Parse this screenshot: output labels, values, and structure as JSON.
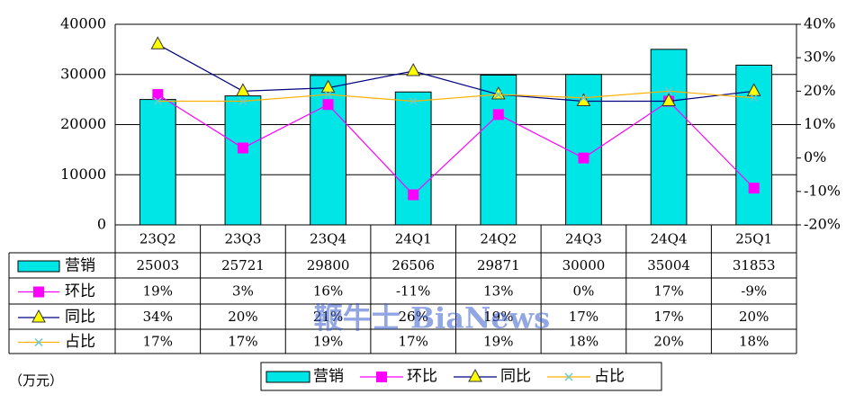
{
  "chart_data": {
    "type": "bar",
    "unit_label": "（万元）",
    "watermark": "鞭牛士 BiaNews",
    "categories": [
      "23Q2",
      "23Q3",
      "23Q4",
      "24Q1",
      "24Q2",
      "24Q3",
      "24Q4",
      "25Q1"
    ],
    "ylim": [
      0,
      40000
    ],
    "yticks": [
      0,
      10000,
      20000,
      30000,
      40000
    ],
    "y2lim": [
      -20,
      40
    ],
    "y2ticks": [
      {
        "value": -20,
        "label": "-20%"
      },
      {
        "value": -10,
        "label": "-10%"
      },
      {
        "value": 0,
        "label": "0%"
      },
      {
        "value": 10,
        "label": "10%"
      },
      {
        "value": 20,
        "label": "20%"
      },
      {
        "value": 30,
        "label": "30%"
      },
      {
        "value": 40,
        "label": "40%"
      }
    ],
    "grid": true,
    "series": [
      {
        "name": "营销",
        "type": "bar",
        "color": "#00e6e6",
        "values": [
          25003,
          25721,
          29800,
          26506,
          29871,
          30000,
          35004,
          31853
        ]
      },
      {
        "name": "环比",
        "type": "line",
        "axis": "y2",
        "color": "#ff00ff",
        "marker": "square",
        "marker_color": "#ff00ff",
        "values": [
          19,
          3,
          16,
          -11,
          13,
          0,
          17,
          -9
        ],
        "value_labels": [
          "19%",
          "3%",
          "16%",
          "-11%",
          "13%",
          "0%",
          "17%",
          "-9%"
        ]
      },
      {
        "name": "同比",
        "type": "line",
        "axis": "y2",
        "color": "#000080",
        "marker": "triangle",
        "marker_color": "#ffff00",
        "values": [
          34,
          20,
          21,
          26,
          19,
          17,
          17,
          20
        ],
        "value_labels": [
          "34%",
          "20%",
          "21%",
          "26%",
          "19%",
          "17%",
          "17%",
          "20%"
        ]
      },
      {
        "name": "占比",
        "type": "line",
        "axis": "y2",
        "color": "#ffb000",
        "marker": "x",
        "marker_color": "#66cccc",
        "values": [
          17,
          17,
          19,
          17,
          19,
          18,
          20,
          18
        ],
        "value_labels": [
          "17%",
          "17%",
          "19%",
          "17%",
          "19%",
          "18%",
          "20%",
          "18%"
        ]
      }
    ]
  }
}
